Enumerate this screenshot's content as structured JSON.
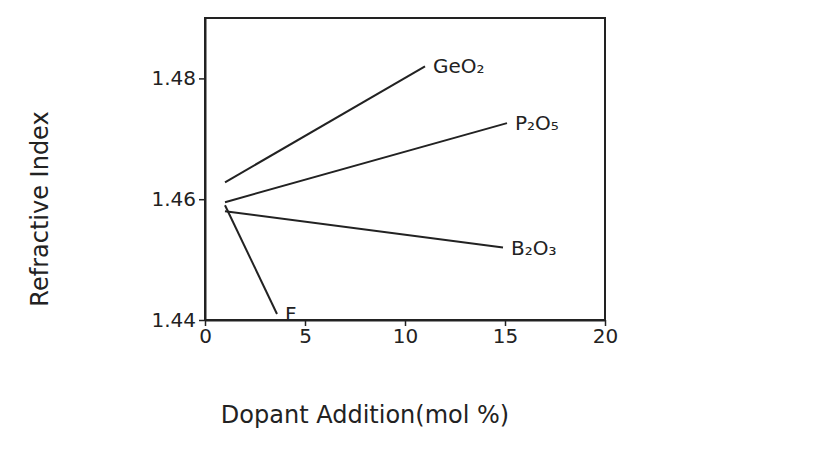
{
  "chart_data": {
    "type": "line",
    "x_label": "Dopant Addition(mol %)",
    "y_label": "Refractive Index",
    "xlim": [
      0,
      20
    ],
    "xticks": [
      0,
      5,
      10,
      15,
      20
    ],
    "ylim": [
      1.44,
      1.49
    ],
    "yticks": [
      1.44,
      1.46,
      1.48
    ],
    "grid": false,
    "series": [
      {
        "name": "GeO₂",
        "color": "#222222",
        "x": [
          1,
          11
        ],
        "values": [
          1.4628,
          1.482
        ]
      },
      {
        "name": "P₂O₅",
        "color": "#222222",
        "x": [
          1,
          15.1
        ],
        "values": [
          1.4595,
          1.4726
        ]
      },
      {
        "name": "B₂O₃",
        "color": "#222222",
        "x": [
          1,
          14.9
        ],
        "values": [
          1.458,
          1.452
        ]
      },
      {
        "name": "F",
        "color": "#222222",
        "x": [
          1,
          3.6
        ],
        "values": [
          1.459,
          1.441
        ]
      }
    ]
  }
}
